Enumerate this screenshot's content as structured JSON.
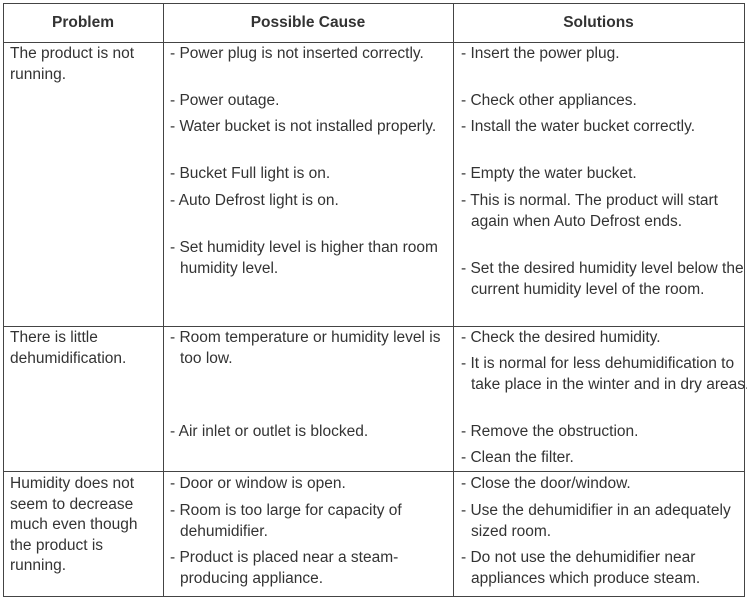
{
  "headers": [
    "Problem",
    "Possible Cause",
    "Solutions"
  ],
  "rows": [
    {
      "problem": "The product is not running.",
      "causes": [
        "- Power plug is not inserted correctly.",
        "- Power outage.",
        "- Water bucket is not installed properly.",
        "- Bucket Full light is on.",
        "- Auto Defrost light is on.",
        "- Set humidity level is higher than room humidity level."
      ],
      "solutions": [
        "- Insert the power plug.",
        "- Check other appliances.",
        "- Install the water bucket correctly.",
        "- Empty the water bucket.",
        "- This is normal. The product will start again when Auto Defrost ends.",
        "- Set the desired humidity level below the current humidity level of the room."
      ]
    },
    {
      "problem": "There is little dehumidification.",
      "causes": [
        "- Room temperature or humidity level is too low.",
        "- Air inlet or outlet is blocked."
      ],
      "solutions": [
        "- Check the desired humidity.",
        "- It is normal for less dehumidification to take place in the winter and in dry areas.",
        "- Remove the obstruction.",
        "- Clean the filter."
      ]
    },
    {
      "problem": "Humidity does not seem to decrease much even though the product is running.",
      "causes": [
        "- Door or window is open.",
        "- Room is too large for capacity of dehumidifier.",
        "- Product is placed near a steam-producing appliance."
      ],
      "solutions": [
        "- Close the door/window.",
        "- Use the dehumidifier in an adequately sized room.",
        "- Do not use the dehumidifier near appliances which produce steam."
      ]
    }
  ]
}
